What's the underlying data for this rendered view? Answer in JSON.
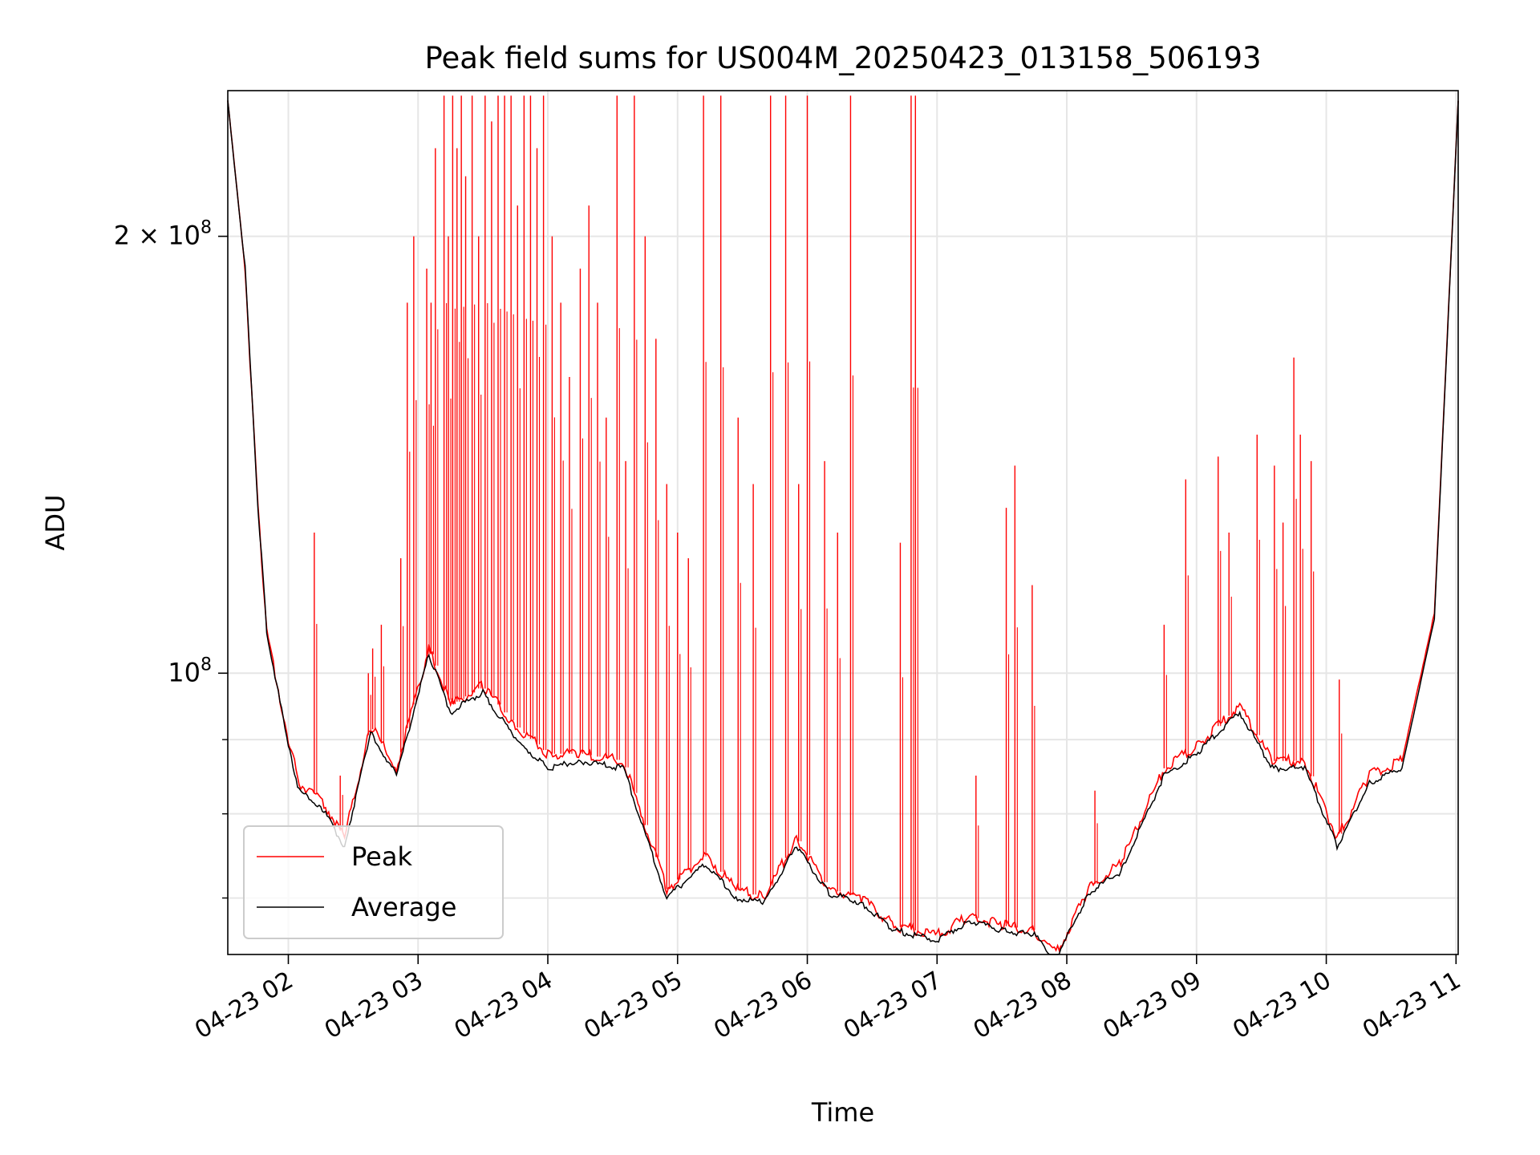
{
  "chart_data": {
    "type": "line",
    "title": "Peak field sums for US004M_20250423_013158_506193",
    "xlabel": "Time",
    "ylabel": "ADU",
    "x_axis_type": "time",
    "xlim": [
      "2025-04-23 01:32",
      "2025-04-23 11:01"
    ],
    "ylim": [
      64000000,
      252000000
    ],
    "yscale": "log",
    "grid": true,
    "legend_position": "lower-left",
    "x_ticks": [
      {
        "value": "2025-04-23 02:00",
        "label": "04-23 02"
      },
      {
        "value": "2025-04-23 03:00",
        "label": "04-23 03"
      },
      {
        "value": "2025-04-23 04:00",
        "label": "04-23 04"
      },
      {
        "value": "2025-04-23 05:00",
        "label": "04-23 05"
      },
      {
        "value": "2025-04-23 06:00",
        "label": "04-23 06"
      },
      {
        "value": "2025-04-23 07:00",
        "label": "04-23 07"
      },
      {
        "value": "2025-04-23 08:00",
        "label": "04-23 08"
      },
      {
        "value": "2025-04-23 09:00",
        "label": "04-23 09"
      },
      {
        "value": "2025-04-23 10:00",
        "label": "04-23 10"
      },
      {
        "value": "2025-04-23 11:00",
        "label": "04-23 11"
      }
    ],
    "y_ticks": [
      {
        "value": 100000000,
        "base": "10",
        "exp": "8",
        "coef": ""
      },
      {
        "value": 200000000,
        "base": "10",
        "exp": "8",
        "coef": "2 × "
      }
    ],
    "y_minor_ticks": [
      70000000,
      80000000,
      90000000
    ],
    "series": [
      {
        "name": "Peak",
        "color": "#ff0000",
        "note_points": "baseline points (x as time, y in ADU); narrow spikes listed separately",
        "x": [
          "2025-04-23 01:32",
          "2025-04-23 01:40",
          "2025-04-23 01:46",
          "2025-04-23 01:50",
          "2025-04-23 02:00",
          "2025-04-23 02:05",
          "2025-04-23 02:15",
          "2025-04-23 02:26",
          "2025-04-23 02:38",
          "2025-04-23 02:50",
          "2025-04-23 03:05",
          "2025-04-23 03:15",
          "2025-04-23 03:30",
          "2025-04-23 03:45",
          "2025-04-23 04:00",
          "2025-04-23 04:15",
          "2025-04-23 04:35",
          "2025-04-23 04:55",
          "2025-04-23 05:13",
          "2025-04-23 05:27",
          "2025-04-23 05:40",
          "2025-04-23 05:55",
          "2025-04-23 06:10",
          "2025-04-23 06:25",
          "2025-04-23 06:40",
          "2025-04-23 07:00",
          "2025-04-23 07:15",
          "2025-04-23 07:30",
          "2025-04-23 07:45",
          "2025-04-23 07:55",
          "2025-04-23 08:10",
          "2025-04-23 08:25",
          "2025-04-23 08:45",
          "2025-04-23 09:00",
          "2025-04-23 09:20",
          "2025-04-23 09:35",
          "2025-04-23 09:50",
          "2025-04-23 10:05",
          "2025-04-23 10:20",
          "2025-04-23 10:35",
          "2025-04-23 10:50",
          "2025-04-23 11:01"
        ],
        "values": [
          248000000,
          190000000,
          130000000,
          107000000,
          90000000,
          84000000,
          82000000,
          77000000,
          92000000,
          86000000,
          104000000,
          95000000,
          98000000,
          92000000,
          88000000,
          88000000,
          87000000,
          71000000,
          75000000,
          71000000,
          70000000,
          77000000,
          71000000,
          70000000,
          67000000,
          66000000,
          68000000,
          67000000,
          66500000,
          64000000,
          71000000,
          74000000,
          86000000,
          89000000,
          95000000,
          87000000,
          87000000,
          77000000,
          85000000,
          87000000,
          110000000,
          248000000
        ]
      },
      {
        "name": "Average",
        "color": "#000000",
        "x": [
          "2025-04-23 01:32",
          "2025-04-23 01:40",
          "2025-04-23 01:46",
          "2025-04-23 01:50",
          "2025-04-23 02:00",
          "2025-04-23 02:05",
          "2025-04-23 02:15",
          "2025-04-23 02:26",
          "2025-04-23 02:38",
          "2025-04-23 02:50",
          "2025-04-23 03:05",
          "2025-04-23 03:15",
          "2025-04-23 03:30",
          "2025-04-23 03:45",
          "2025-04-23 04:00",
          "2025-04-23 04:15",
          "2025-04-23 04:35",
          "2025-04-23 04:55",
          "2025-04-23 05:13",
          "2025-04-23 05:27",
          "2025-04-23 05:40",
          "2025-04-23 05:55",
          "2025-04-23 06:10",
          "2025-04-23 06:25",
          "2025-04-23 06:40",
          "2025-04-23 07:00",
          "2025-04-23 07:15",
          "2025-04-23 07:30",
          "2025-04-23 07:45",
          "2025-04-23 07:55",
          "2025-04-23 08:10",
          "2025-04-23 08:25",
          "2025-04-23 08:45",
          "2025-04-23 09:00",
          "2025-04-23 09:20",
          "2025-04-23 09:35",
          "2025-04-23 09:50",
          "2025-04-23 10:05",
          "2025-04-23 10:20",
          "2025-04-23 10:35",
          "2025-04-23 10:50",
          "2025-04-23 11:01"
        ],
        "values": [
          248000000,
          190000000,
          130000000,
          107000000,
          89000000,
          83000000,
          81000000,
          76000000,
          91000000,
          85000000,
          103000000,
          94000000,
          97000000,
          90000000,
          86000000,
          87000000,
          86000000,
          70000000,
          74000000,
          70000000,
          69500000,
          76000000,
          70500000,
          69500000,
          66500000,
          65500000,
          67500000,
          66500000,
          66000000,
          63500000,
          70500000,
          73000000,
          85000000,
          88000000,
          94000000,
          86000000,
          86000000,
          76000000,
          84000000,
          86000000,
          109000000,
          248000000
        ]
      }
    ],
    "peak_spikes": {
      "x": [
        "2025-04-23 02:12",
        "2025-04-23 02:24",
        "2025-04-23 02:37",
        "2025-04-23 02:39",
        "2025-04-23 02:43",
        "2025-04-23 02:52",
        "2025-04-23 02:55",
        "2025-04-23 02:58",
        "2025-04-23 03:04",
        "2025-04-23 03:06",
        "2025-04-23 03:08",
        "2025-04-23 03:12",
        "2025-04-23 03:14",
        "2025-04-23 03:16",
        "2025-04-23 03:18",
        "2025-04-23 03:20",
        "2025-04-23 03:22",
        "2025-04-23 03:25",
        "2025-04-23 03:28",
        "2025-04-23 03:31",
        "2025-04-23 03:34",
        "2025-04-23 03:37",
        "2025-04-23 03:40",
        "2025-04-23 03:43",
        "2025-04-23 03:46",
        "2025-04-23 03:49",
        "2025-04-23 03:52",
        "2025-04-23 03:55",
        "2025-04-23 03:58",
        "2025-04-23 04:02",
        "2025-04-23 04:06",
        "2025-04-23 04:10",
        "2025-04-23 04:15",
        "2025-04-23 04:19",
        "2025-04-23 04:23",
        "2025-04-23 04:27",
        "2025-04-23 04:32",
        "2025-04-23 04:36",
        "2025-04-23 04:40",
        "2025-04-23 04:45",
        "2025-04-23 04:50",
        "2025-04-23 04:55",
        "2025-04-23 05:00",
        "2025-04-23 05:05",
        "2025-04-23 05:12",
        "2025-04-23 05:20",
        "2025-04-23 05:28",
        "2025-04-23 05:35",
        "2025-04-23 05:43",
        "2025-04-23 05:50",
        "2025-04-23 05:56",
        "2025-04-23 06:00",
        "2025-04-23 06:08",
        "2025-04-23 06:14",
        "2025-04-23 06:20",
        "2025-04-23 06:43",
        "2025-04-23 06:48",
        "2025-04-23 06:50",
        "2025-04-23 07:18",
        "2025-04-23 07:32",
        "2025-04-23 07:36",
        "2025-04-23 07:44",
        "2025-04-23 08:13",
        "2025-04-23 08:45",
        "2025-04-23 08:55",
        "2025-04-23 09:10",
        "2025-04-23 09:15",
        "2025-04-23 09:28",
        "2025-04-23 09:36",
        "2025-04-23 09:40",
        "2025-04-23 09:45",
        "2025-04-23 09:48",
        "2025-04-23 09:53",
        "2025-04-23 10:06"
      ],
      "values": [
        125000000,
        85000000,
        100000000,
        104000000,
        108000000,
        120000000,
        180000000,
        200000000,
        190000000,
        180000000,
        230000000,
        250000000,
        200000000,
        250000000,
        230000000,
        250000000,
        220000000,
        250000000,
        200000000,
        250000000,
        240000000,
        250000000,
        250000000,
        250000000,
        210000000,
        250000000,
        250000000,
        230000000,
        250000000,
        200000000,
        180000000,
        160000000,
        190000000,
        210000000,
        180000000,
        150000000,
        250000000,
        140000000,
        250000000,
        200000000,
        170000000,
        135000000,
        125000000,
        120000000,
        250000000,
        250000000,
        150000000,
        135000000,
        250000000,
        250000000,
        135000000,
        250000000,
        140000000,
        125000000,
        250000000,
        123000000,
        250000000,
        250000000,
        85000000,
        130000000,
        139000000,
        115000000,
        83000000,
        108000000,
        136000000,
        141000000,
        125000000,
        146000000,
        139000000,
        127000000,
        165000000,
        146000000,
        140000000,
        99000000
      ]
    }
  }
}
